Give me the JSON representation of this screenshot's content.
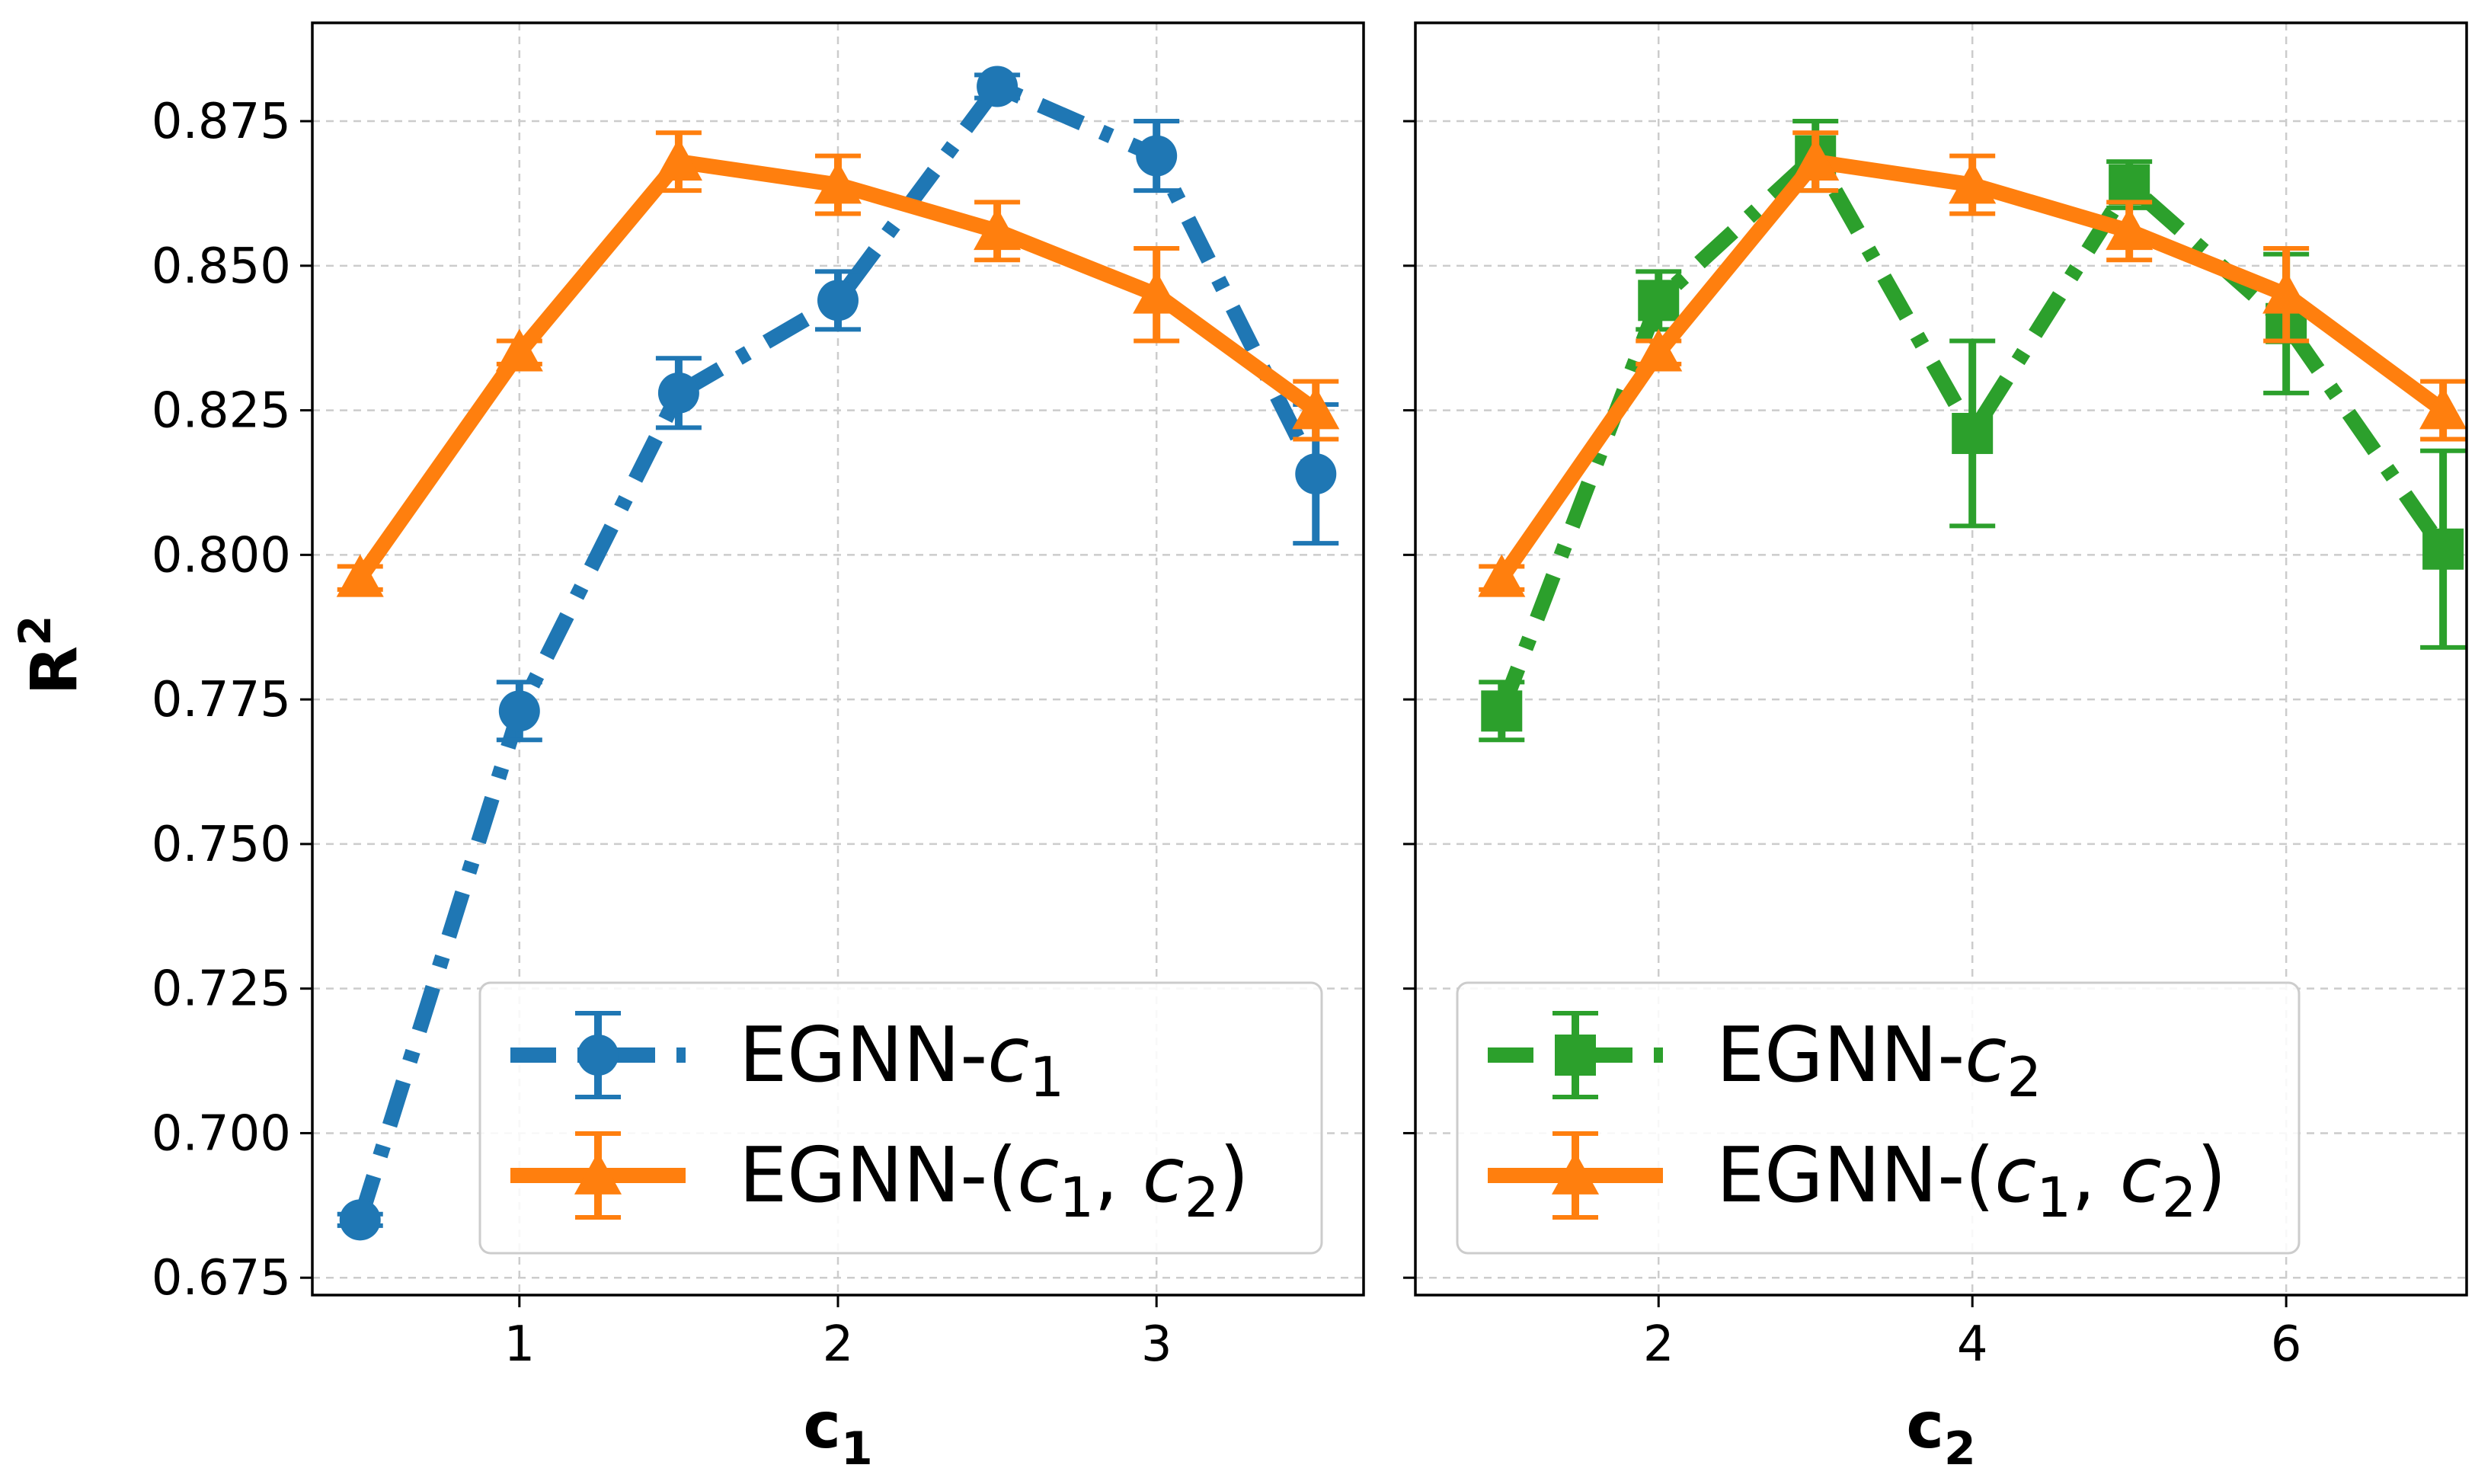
{
  "chart_data": {
    "type": "line",
    "y_label": "R",
    "y_label_sup": "2",
    "ylim": [
      0.672,
      0.892
    ],
    "y_ticks": [
      "0.675",
      "0.700",
      "0.725",
      "0.750",
      "0.775",
      "0.800",
      "0.825",
      "0.850",
      "0.875"
    ],
    "grid": true,
    "panels": [
      {
        "id": "left",
        "xlabel": "c",
        "xlabel_sub": "1",
        "xlim": [
          0.35,
          3.65
        ],
        "x_ticks": [
          "1",
          "2",
          "3"
        ],
        "legend_location": "lower-right",
        "series": [
          {
            "name": "EGNN-c1",
            "legend_prefix": "EGNN-",
            "legend_var": "c",
            "legend_sub": "1",
            "color": "#1f77b4",
            "linestyle": "dashdot",
            "marker": "circle",
            "x": [
              0.5,
              1.0,
              1.5,
              2.0,
              2.5,
              3.0,
              3.5
            ],
            "y": [
              0.685,
              0.773,
              0.828,
              0.844,
              0.881,
              0.869,
              0.814
            ],
            "err": [
              0.001,
              0.005,
              0.006,
              0.005,
              0.002,
              0.006,
              0.012
            ]
          },
          {
            "name": "EGNN-(c1, c2)",
            "legend_prefix": "EGNN-(",
            "legend_var": "c",
            "legend_sub": "1",
            "legend_mid": ", ",
            "legend_var2": "c",
            "legend_sub2": "2",
            "legend_suffix": ")",
            "color": "#ff7f0e",
            "linestyle": "solid",
            "marker": "triangle",
            "x": [
              0.5,
              1.0,
              1.5,
              2.0,
              2.5,
              3.0,
              3.5
            ],
            "y": [
              0.796,
              0.835,
              0.868,
              0.864,
              0.856,
              0.845,
              0.825
            ],
            "err": [
              0.002,
              0.002,
              0.005,
              0.005,
              0.005,
              0.008,
              0.005
            ]
          }
        ]
      },
      {
        "id": "right",
        "xlabel": "c",
        "xlabel_sub": "2",
        "xlim": [
          0.45,
          7.15
        ],
        "x_ticks": [
          "2",
          "4",
          "6"
        ],
        "legend_location": "lower-right",
        "series": [
          {
            "name": "EGNN-c2",
            "legend_prefix": "EGNN-",
            "legend_var": "c",
            "legend_sub": "2",
            "color": "#2ca02c",
            "linestyle": "dashdot",
            "marker": "square",
            "x": [
              1,
              2,
              3,
              4,
              5,
              6,
              7
            ],
            "y": [
              0.773,
              0.844,
              0.869,
              0.821,
              0.864,
              0.84,
              0.801
            ],
            "err": [
              0.005,
              0.005,
              0.006,
              0.016,
              0.004,
              0.012,
              0.017
            ]
          },
          {
            "name": "EGNN-(c1, c2)",
            "legend_prefix": "EGNN-(",
            "legend_var": "c",
            "legend_sub": "1",
            "legend_mid": ", ",
            "legend_var2": "c",
            "legend_sub2": "2",
            "legend_suffix": ")",
            "color": "#ff7f0e",
            "linestyle": "solid",
            "marker": "triangle",
            "x": [
              1,
              2,
              3,
              4,
              5,
              6,
              7
            ],
            "y": [
              0.796,
              0.835,
              0.868,
              0.864,
              0.856,
              0.845,
              0.825
            ],
            "err": [
              0.002,
              0.002,
              0.005,
              0.005,
              0.005,
              0.008,
              0.005
            ]
          }
        ]
      }
    ]
  }
}
